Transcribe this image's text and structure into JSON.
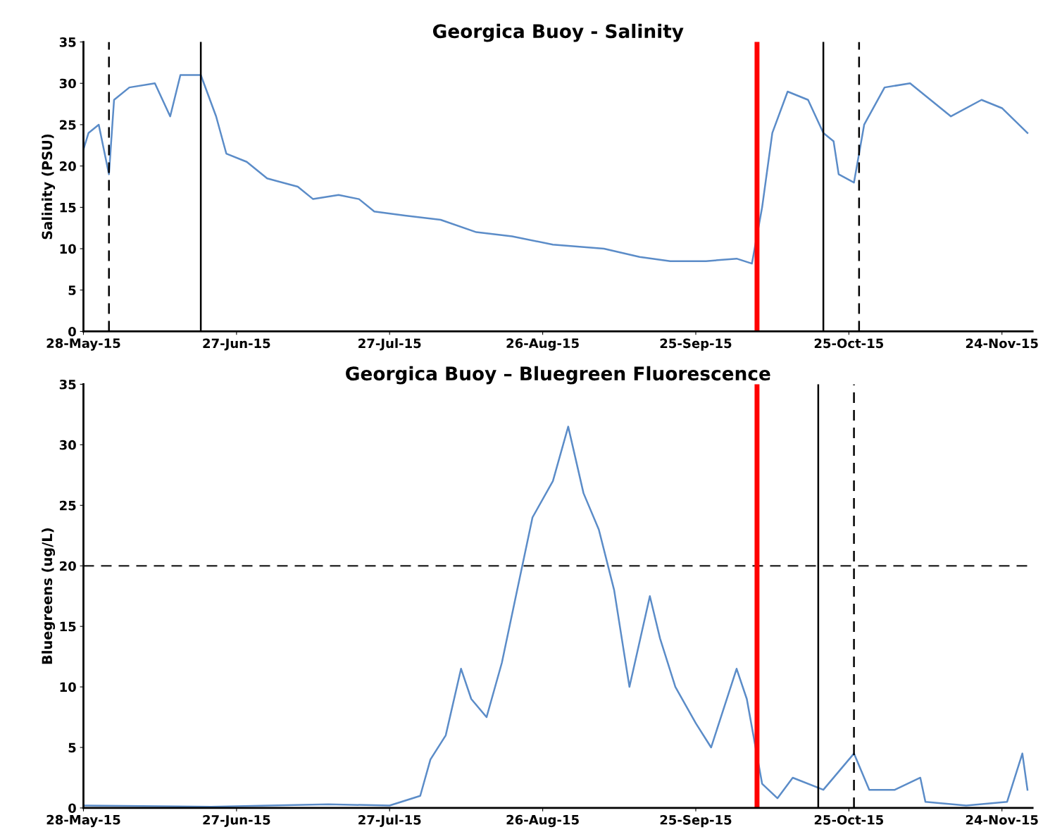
{
  "chart_data": [
    {
      "type": "line",
      "title": "Georgica Buoy - Salinity",
      "ylabel": "Salinity (PSU)",
      "ylim": [
        0,
        35
      ],
      "yticks": [
        0,
        5,
        10,
        15,
        20,
        25,
        30,
        35
      ],
      "xlim": [
        "2015-05-28",
        "2015-11-30"
      ],
      "xticks": [
        {
          "value": "2015-05-28",
          "label": "28-May-15"
        },
        {
          "value": "2015-06-27",
          "label": "27-Jun-15"
        },
        {
          "value": "2015-07-27",
          "label": "27-Jul-15"
        },
        {
          "value": "2015-08-26",
          "label": "26-Aug-15"
        },
        {
          "value": "2015-09-25",
          "label": "25-Sep-15"
        },
        {
          "value": "2015-10-25",
          "label": "25-Oct-15"
        },
        {
          "value": "2015-11-24",
          "label": "24-Nov-15"
        }
      ],
      "grid": false,
      "x": [
        "2015-05-28",
        "2015-05-29",
        "2015-05-31",
        "2015-06-01",
        "2015-06-02",
        "2015-06-03",
        "2015-06-06",
        "2015-06-11",
        "2015-06-14",
        "2015-06-16",
        "2015-06-20",
        "2015-06-23",
        "2015-06-25",
        "2015-06-29",
        "2015-07-03",
        "2015-07-09",
        "2015-07-12",
        "2015-07-17",
        "2015-07-21",
        "2015-07-24",
        "2015-07-30",
        "2015-08-06",
        "2015-08-13",
        "2015-08-20",
        "2015-08-28",
        "2015-09-07",
        "2015-09-14",
        "2015-09-20",
        "2015-09-27",
        "2015-10-03",
        "2015-10-06",
        "2015-10-08",
        "2015-10-10",
        "2015-10-13",
        "2015-10-17",
        "2015-10-20",
        "2015-10-22",
        "2015-10-23",
        "2015-10-26",
        "2015-10-28",
        "2015-11-01",
        "2015-11-06",
        "2015-11-10",
        "2015-11-14",
        "2015-11-20",
        "2015-11-24",
        "2015-11-29"
      ],
      "series": [
        {
          "color": "#5b8cc8",
          "values": [
            22,
            24,
            25,
            22,
            19,
            28,
            29.5,
            30,
            26,
            31,
            31,
            26,
            21.5,
            20.5,
            18.5,
            17.5,
            16,
            16.5,
            16,
            14.5,
            14,
            13.5,
            12,
            11.5,
            10.5,
            10,
            9,
            8.5,
            8.5,
            8.8,
            8.2,
            15,
            24,
            29,
            28,
            24,
            23,
            19,
            18,
            25,
            29.5,
            30,
            28,
            26,
            28,
            27,
            24
          ]
        }
      ],
      "ref_lines": [
        {
          "axis": "x",
          "value": "2015-06-02",
          "line_style": "dashed",
          "color": "#000000"
        },
        {
          "axis": "x",
          "value": "2015-06-20",
          "line_style": "solid",
          "color": "#000000"
        },
        {
          "axis": "x",
          "value": "2015-10-20",
          "line_style": "solid",
          "color": "#000000"
        },
        {
          "axis": "x",
          "value": "2015-10-27",
          "line_style": "dashed",
          "color": "#000000"
        },
        {
          "axis": "x",
          "value": "2015-10-07",
          "line_style": "solid",
          "color": "#ff0000"
        }
      ]
    },
    {
      "type": "line",
      "title": "Georgica Buoy – Bluegreen Fluorescence",
      "ylabel": "Bluegreens (ug/L)",
      "ylim": [
        0,
        35
      ],
      "yticks": [
        0,
        5,
        10,
        15,
        20,
        25,
        30,
        35
      ],
      "xlim": [
        "2015-05-28",
        "2015-11-30"
      ],
      "xticks": [
        {
          "value": "2015-05-28",
          "label": "28-May-15"
        },
        {
          "value": "2015-06-27",
          "label": "27-Jun-15"
        },
        {
          "value": "2015-07-27",
          "label": "27-Jul-15"
        },
        {
          "value": "2015-08-26",
          "label": "26-Aug-15"
        },
        {
          "value": "2015-09-25",
          "label": "25-Sep-15"
        },
        {
          "value": "2015-10-25",
          "label": "25-Oct-15"
        },
        {
          "value": "2015-11-24",
          "label": "24-Nov-15"
        }
      ],
      "grid": false,
      "x": [
        "2015-05-28",
        "2015-06-22",
        "2015-07-15",
        "2015-07-27",
        "2015-08-02",
        "2015-08-04",
        "2015-08-07",
        "2015-08-10",
        "2015-08-12",
        "2015-08-15",
        "2015-08-18",
        "2015-08-21",
        "2015-08-24",
        "2015-08-28",
        "2015-08-31",
        "2015-09-03",
        "2015-09-06",
        "2015-09-09",
        "2015-09-12",
        "2015-09-16",
        "2015-09-18",
        "2015-09-21",
        "2015-09-25",
        "2015-09-28",
        "2015-10-03",
        "2015-10-05",
        "2015-10-08",
        "2015-10-11",
        "2015-10-14",
        "2015-10-20",
        "2015-10-23",
        "2015-10-26",
        "2015-10-29",
        "2015-11-03",
        "2015-11-08",
        "2015-11-09",
        "2015-11-17",
        "2015-11-25",
        "2015-11-28",
        "2015-11-29"
      ],
      "series": [
        {
          "color": "#5b8cc8",
          "values": [
            0.2,
            0.1,
            0.3,
            0.2,
            1,
            4,
            6,
            11.5,
            9,
            7.5,
            12,
            18,
            24,
            27,
            31.5,
            26,
            23,
            18,
            10,
            17.5,
            14,
            10,
            7,
            5,
            11.5,
            9,
            2,
            0.8,
            2.5,
            1.5,
            3,
            4.5,
            1.5,
            1.5,
            2.5,
            0.5,
            0.2,
            0.5,
            4.5,
            1.5
          ]
        }
      ],
      "ref_lines": [
        {
          "axis": "y",
          "value": 20,
          "line_style": "dashed",
          "color": "#333333"
        },
        {
          "axis": "x",
          "value": "2015-10-19",
          "line_style": "solid",
          "color": "#000000"
        },
        {
          "axis": "x",
          "value": "2015-10-26",
          "line_style": "dashed",
          "color": "#000000"
        },
        {
          "axis": "x",
          "value": "2015-10-07",
          "line_style": "solid",
          "color": "#ff0000"
        }
      ]
    }
  ]
}
